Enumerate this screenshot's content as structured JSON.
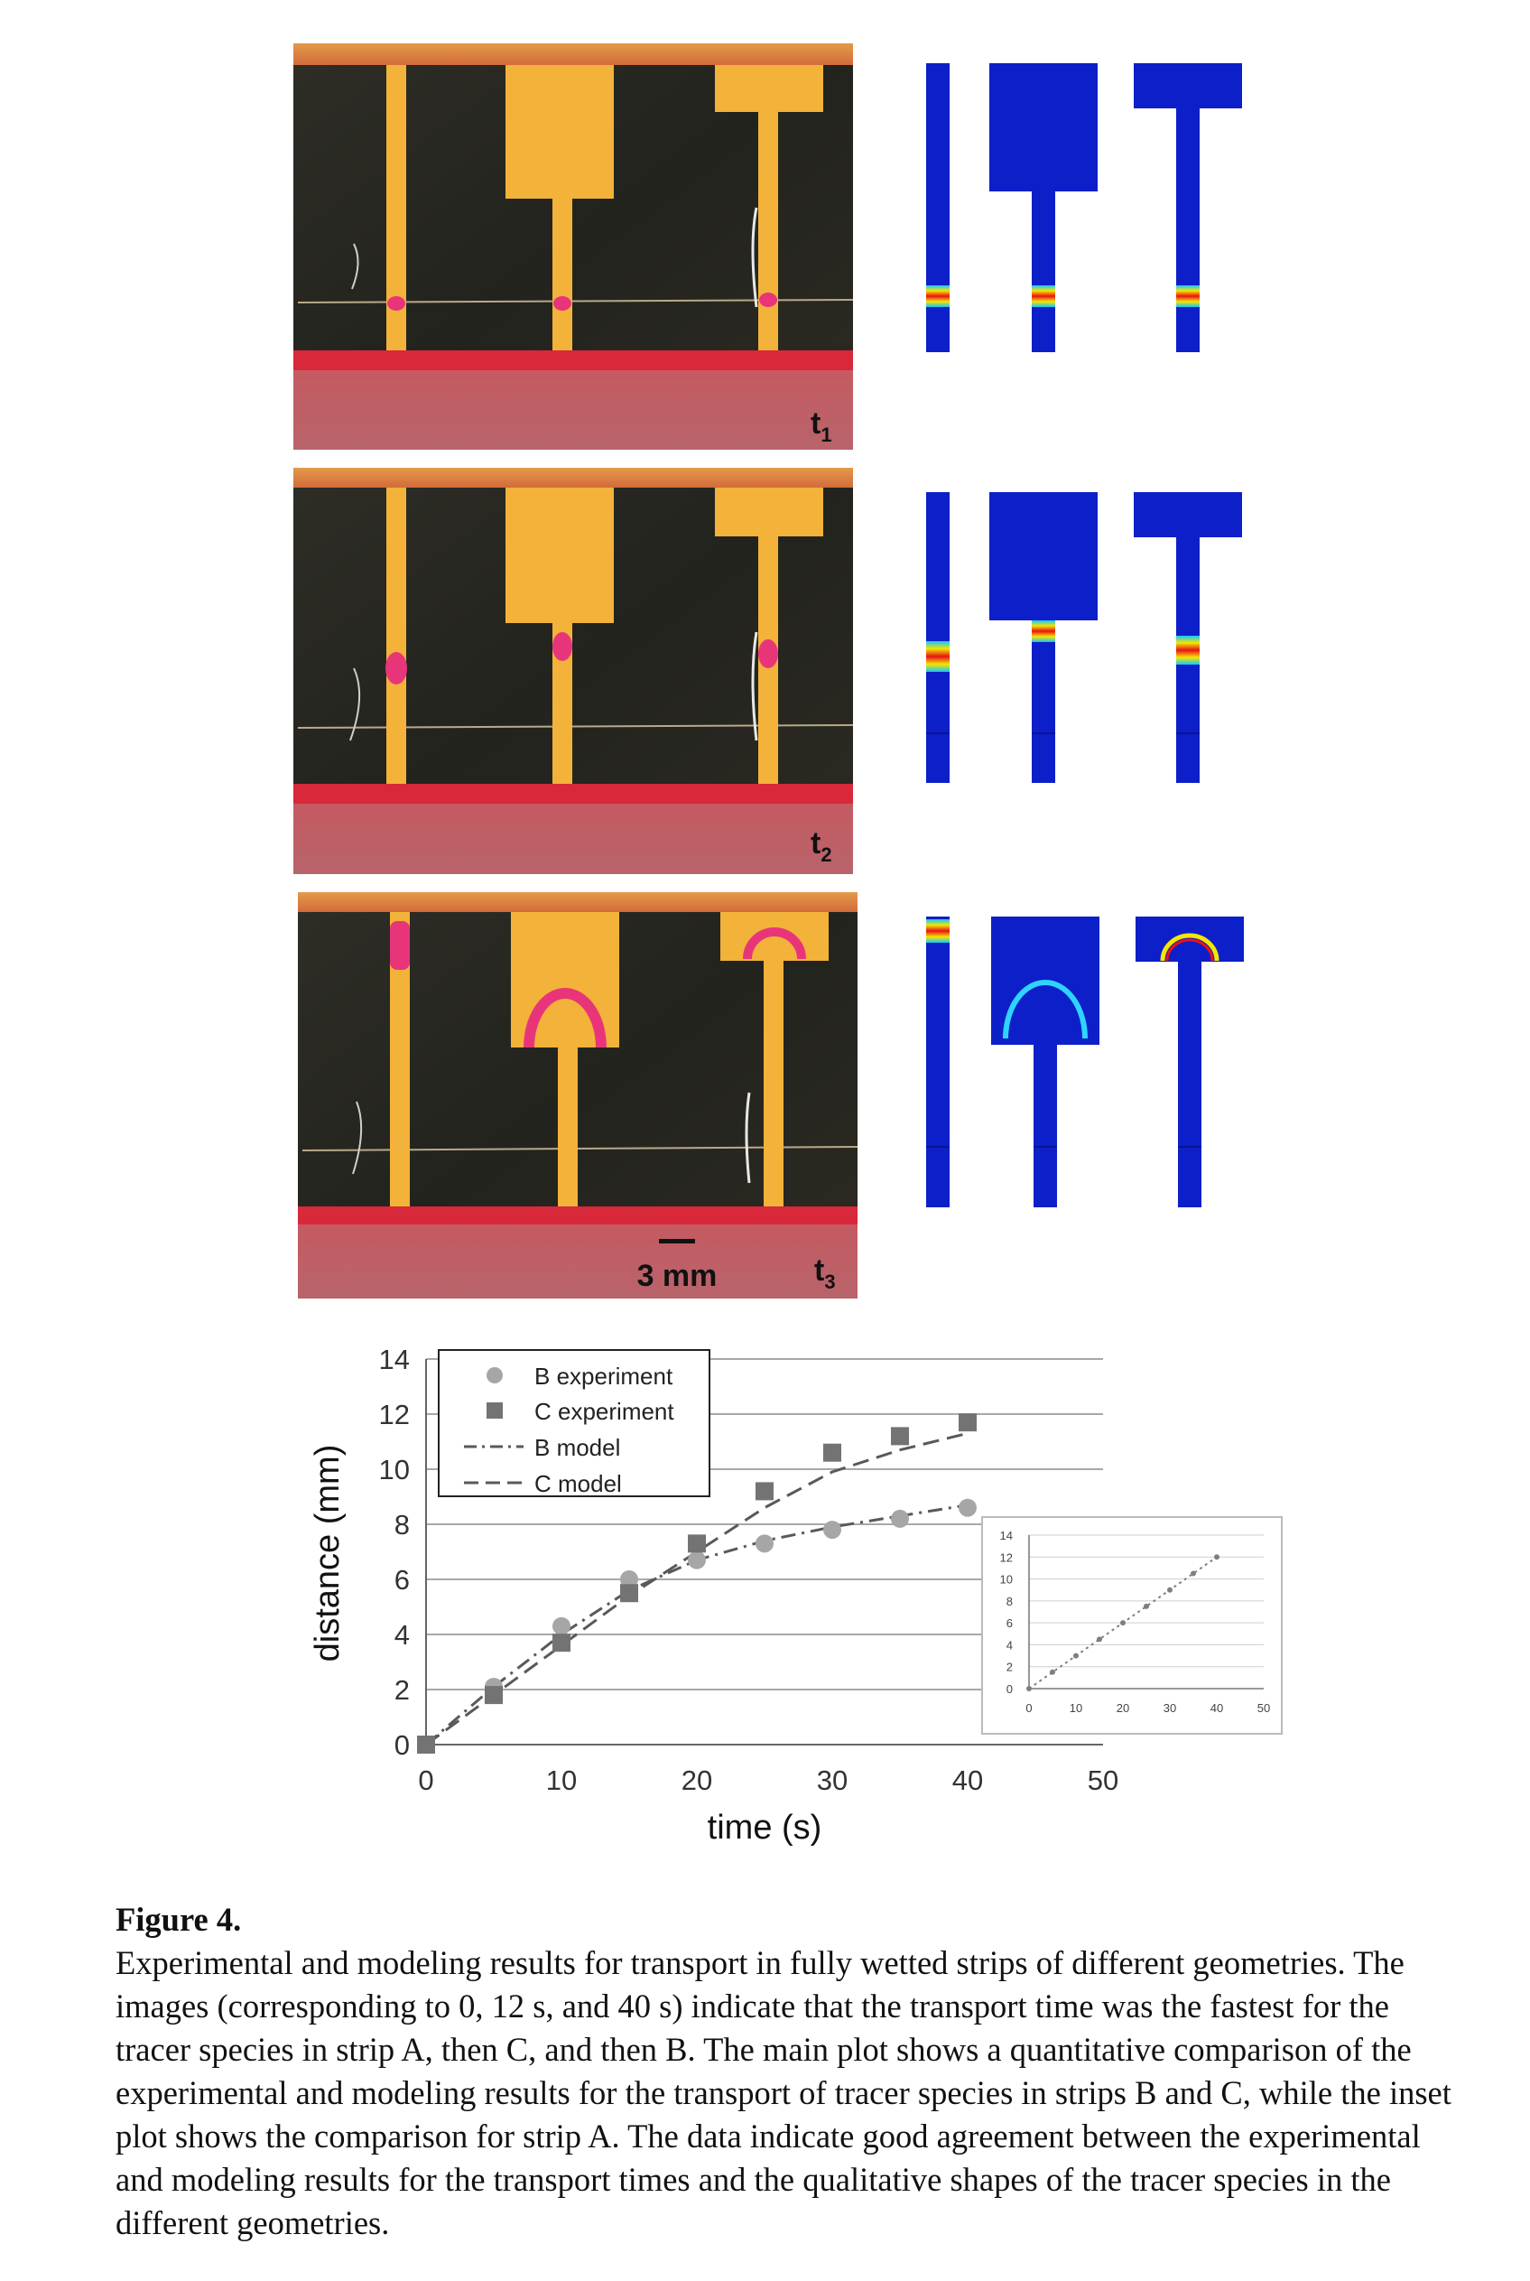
{
  "panels": [
    {
      "label": "t",
      "sub": "1"
    },
    {
      "label": "t",
      "sub": "2"
    },
    {
      "label": "t",
      "sub": "3"
    }
  ],
  "scale_bar": "3 mm",
  "main_plot": {
    "xlabel": "time (s)",
    "ylabel": "distance (mm)",
    "xticks": [
      "0",
      "10",
      "20",
      "30",
      "40",
      "50"
    ],
    "yticks": [
      "0",
      "2",
      "4",
      "6",
      "8",
      "10",
      "12",
      "14"
    ],
    "legend": [
      "B experiment",
      "C experiment",
      "B model",
      "C model"
    ]
  },
  "inset_plot": {
    "xticks": [
      "0",
      "10",
      "20",
      "30",
      "40",
      "50"
    ],
    "yticks": [
      "0",
      "2",
      "4",
      "6",
      "8",
      "10",
      "12",
      "14"
    ]
  },
  "chart_data": [
    {
      "type": "scatter",
      "xlabel": "time (s)",
      "ylabel": "distance (mm)",
      "xlim": [
        0,
        50
      ],
      "ylim": [
        0,
        14
      ],
      "grid": true,
      "legend_position": "top-left",
      "series": [
        {
          "name": "B experiment",
          "marker": "circle",
          "color": "#a6a6a6",
          "x": [
            0,
            5,
            10,
            15,
            20,
            25,
            30,
            35,
            40
          ],
          "y": [
            0,
            2.1,
            4.3,
            6.0,
            6.7,
            7.3,
            7.8,
            8.2,
            8.6
          ]
        },
        {
          "name": "C experiment",
          "marker": "square",
          "color": "#737373",
          "x": [
            0,
            5,
            10,
            15,
            20,
            25,
            30,
            35,
            40
          ],
          "y": [
            0,
            1.8,
            3.7,
            5.5,
            7.3,
            9.2,
            10.6,
            11.2,
            11.7
          ]
        },
        {
          "name": "B model",
          "line": "dash-dot",
          "color": "#595959",
          "x": [
            0,
            5,
            10,
            15,
            20,
            25,
            30,
            35,
            40
          ],
          "y": [
            0,
            2.1,
            4.0,
            5.6,
            6.7,
            7.4,
            7.9,
            8.3,
            8.7
          ]
        },
        {
          "name": "C model",
          "line": "dashed",
          "color": "#595959",
          "x": [
            0,
            5,
            10,
            15,
            20,
            25,
            30,
            35,
            40
          ],
          "y": [
            0,
            1.8,
            3.6,
            5.4,
            7.0,
            8.6,
            9.9,
            10.7,
            11.3
          ]
        }
      ]
    },
    {
      "type": "line",
      "xlim": [
        0,
        50
      ],
      "ylim": [
        0,
        14
      ],
      "grid": true,
      "series": [
        {
          "marker": "circle",
          "line": "dotted",
          "color": "#7f7f7f",
          "x": [
            0,
            5,
            10,
            15,
            20,
            25,
            30,
            35,
            40
          ],
          "y": [
            0,
            1.5,
            3.0,
            4.5,
            6.0,
            7.5,
            9.0,
            10.5,
            12.0
          ]
        }
      ]
    }
  ],
  "caption": {
    "title": "Figure 4.",
    "text": "Experimental and modeling results for transport in fully wetted strips of different geometries. The images (corresponding to 0, 12 s, and 40 s) indicate that the transport time was the fastest for the tracer species in strip A, then C, and then B. The main plot shows a quantitative comparison of the experimental and modeling results for the transport of tracer species in strips B and C, while the inset plot shows the comparison for strip A. The data indicate good agreement between the experimental and modeling results for the transport times and the qualitative shapes of the tracer species in the different geometries."
  },
  "colors": {
    "paper_bg": "#2a2820",
    "strip": "#f3b23a",
    "dye": "#e8357a",
    "red_band": "#d8283a",
    "sim_blue": "#0d1fc8"
  }
}
